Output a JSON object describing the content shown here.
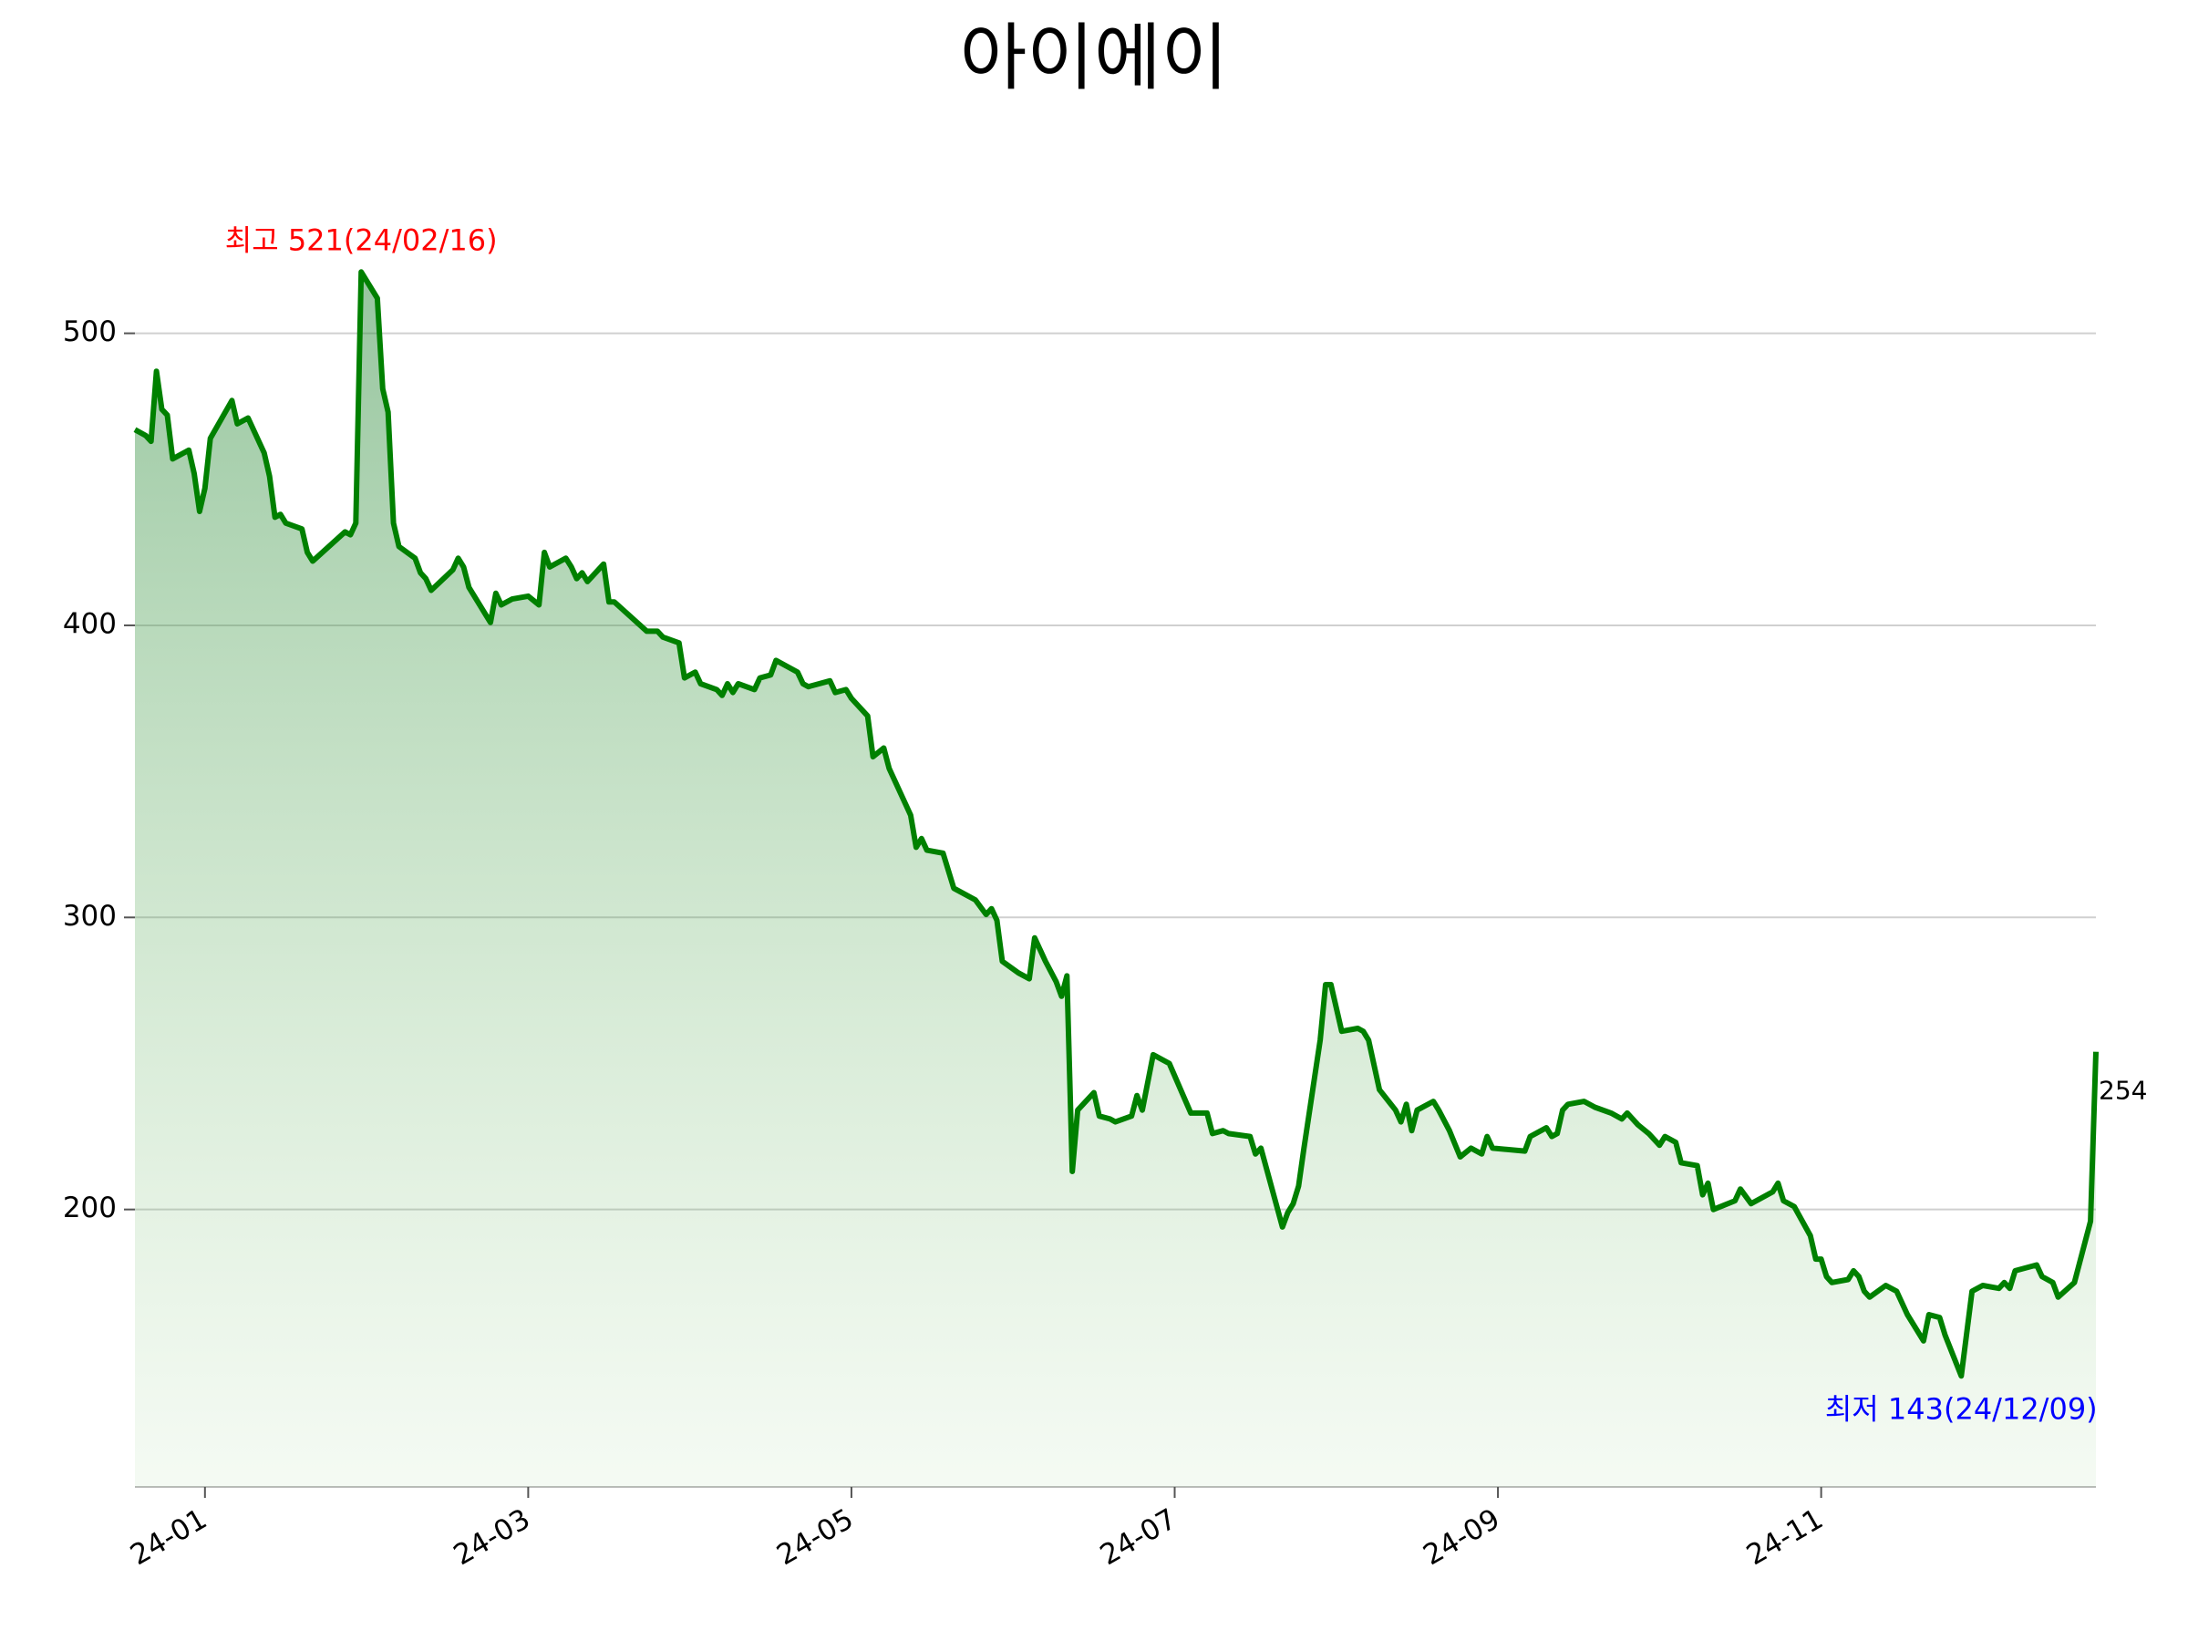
{
  "chart_data": {
    "type": "line",
    "title": "아이에이",
    "color": "green",
    "grid": true,
    "x": [
      "2024-01-05",
      "2024-01-07",
      "2024-01-08",
      "2024-01-09",
      "2024-01-10",
      "2024-01-11",
      "2024-01-12",
      "2024-01-15",
      "2024-01-16",
      "2024-01-17",
      "2024-01-18",
      "2024-01-19",
      "2024-01-23",
      "2024-01-24",
      "2024-01-26",
      "2024-01-29",
      "2024-01-30",
      "2024-01-31",
      "2024-02-01",
      "2024-02-02",
      "2024-02-05",
      "2024-02-06",
      "2024-02-07",
      "2024-02-13",
      "2024-02-14",
      "2024-02-15",
      "2024-02-16",
      "2024-02-19",
      "2024-02-20",
      "2024-02-21",
      "2024-02-22",
      "2024-02-23",
      "2024-02-26",
      "2024-02-27",
      "2024-02-28",
      "2024-02-29",
      "2024-03-04",
      "2024-03-05",
      "2024-03-06",
      "2024-03-07",
      "2024-03-11",
      "2024-03-12",
      "2024-03-13",
      "2024-03-15",
      "2024-03-18",
      "2024-03-20",
      "2024-03-21",
      "2024-03-22",
      "2024-03-25",
      "2024-03-26",
      "2024-03-27",
      "2024-03-28",
      "2024-03-29",
      "2024-04-01",
      "2024-04-02",
      "2024-04-03",
      "2024-04-09",
      "2024-04-11",
      "2024-04-12",
      "2024-04-15",
      "2024-04-16",
      "2024-04-18",
      "2024-04-19",
      "2024-04-22",
      "2024-04-23",
      "2024-04-24",
      "2024-04-25",
      "2024-04-26",
      "2024-04-29",
      "2024-04-30",
      "2024-05-02",
      "2024-05-03",
      "2024-05-07",
      "2024-05-08",
      "2024-05-09",
      "2024-05-13",
      "2024-05-14",
      "2024-05-16",
      "2024-05-17",
      "2024-05-20",
      "2024-05-21",
      "2024-05-23",
      "2024-05-24",
      "2024-05-28",
      "2024-05-29",
      "2024-05-30",
      "2024-05-31",
      "2024-06-03",
      "2024-06-05",
      "2024-06-09",
      "2024-06-11",
      "2024-06-12",
      "2024-06-13",
      "2024-06-14",
      "2024-06-17",
      "2024-06-19",
      "2024-06-20",
      "2024-06-22",
      "2024-06-24",
      "2024-06-25",
      "2024-06-26",
      "2024-06-27",
      "2024-06-28",
      "2024-07-01",
      "2024-07-02",
      "2024-07-04",
      "2024-07-05",
      "2024-07-08",
      "2024-07-09",
      "2024-07-10",
      "2024-07-12",
      "2024-07-15",
      "2024-07-19",
      "2024-07-22",
      "2024-07-23",
      "2024-07-25",
      "2024-07-26",
      "2024-07-30",
      "2024-07-31",
      "2024-08-01",
      "2024-08-05",
      "2024-08-06",
      "2024-08-07",
      "2024-08-08",
      "2024-08-09",
      "2024-08-12",
      "2024-08-13",
      "2024-08-14",
      "2024-08-16",
      "2024-08-19",
      "2024-08-20",
      "2024-08-21",
      "2024-08-23",
      "2024-08-26",
      "2024-08-27",
      "2024-08-28",
      "2024-08-29",
      "2024-08-30",
      "2024-09-02",
      "2024-09-03",
      "2024-09-05",
      "2024-09-07",
      "2024-09-09",
      "2024-09-11",
      "2024-09-12",
      "2024-09-13",
      "2024-09-19",
      "2024-09-20",
      "2024-09-23",
      "2024-09-24",
      "2024-09-25",
      "2024-09-26",
      "2024-09-27",
      "2024-09-30",
      "2024-10-02",
      "2024-10-05",
      "2024-10-07",
      "2024-10-08",
      "2024-10-10",
      "2024-10-12",
      "2024-10-14",
      "2024-10-15",
      "2024-10-17",
      "2024-10-18",
      "2024-10-21",
      "2024-10-22",
      "2024-10-23",
      "2024-10-24",
      "2024-10-28",
      "2024-10-29",
      "2024-10-31",
      "2024-11-04",
      "2024-11-05",
      "2024-11-06",
      "2024-11-08",
      "2024-11-11",
      "2024-11-12",
      "2024-11-13",
      "2024-11-14",
      "2024-11-15",
      "2024-11-18",
      "2024-11-19",
      "2024-11-20",
      "2024-11-21",
      "2024-11-22",
      "2024-11-25",
      "2024-11-27",
      "2024-11-29",
      "2024-12-02",
      "2024-12-03",
      "2024-12-05",
      "2024-12-06",
      "2024-12-09",
      "2024-12-11",
      "2024-12-13",
      "2024-12-16",
      "2024-12-17",
      "2024-12-18",
      "2024-12-19",
      "2024-12-23",
      "2024-12-24",
      "2024-12-26",
      "2024-12-27",
      "2024-12-30",
      "2025-01-02",
      "2025-01-03"
    ],
    "values": [
      467,
      465,
      463,
      487,
      474,
      472,
      457,
      460,
      452,
      439,
      447,
      464,
      477,
      469,
      471,
      459,
      451,
      437,
      438,
      435,
      433,
      425,
      422,
      432,
      431,
      435,
      521,
      512,
      481,
      473,
      435,
      427,
      423,
      418,
      416,
      412,
      419,
      423,
      420,
      413,
      401,
      411,
      407,
      409,
      410,
      407,
      425,
      420,
      423,
      420,
      416,
      418,
      415,
      421,
      408,
      408,
      398,
      398,
      396,
      394,
      382,
      384,
      380,
      378,
      376,
      380,
      377,
      380,
      378,
      382,
      383,
      388,
      384,
      380,
      379,
      381,
      377,
      378,
      375,
      369,
      355,
      358,
      351,
      335,
      324,
      327,
      323,
      322,
      310,
      306,
      301,
      303,
      299,
      285,
      281,
      279,
      293,
      285,
      278,
      273,
      280,
      213,
      234,
      240,
      232,
      231,
      230,
      232,
      239,
      234,
      253,
      250,
      233,
      233,
      226,
      227,
      226,
      225,
      219,
      221,
      194,
      199,
      202,
      208,
      221,
      258,
      277,
      277,
      261,
      262,
      261,
      258,
      241,
      234,
      230,
      236,
      227,
      234,
      237,
      234,
      227,
      218,
      221,
      219,
      225,
      221,
      220,
      225,
      228,
      225,
      226,
      234,
      236,
      237,
      235,
      233,
      231,
      233,
      229,
      226,
      222,
      225,
      223,
      216,
      215,
      205,
      209,
      200,
      203,
      207,
      202,
      206,
      209,
      203,
      201,
      191,
      183,
      183,
      177,
      175,
      176,
      179,
      177,
      172,
      170,
      174,
      172,
      164,
      155,
      164,
      163,
      157,
      143,
      172,
      174,
      173,
      175,
      173,
      179,
      181,
      177,
      175,
      170,
      175,
      196,
      254
    ],
    "xlim": [
      "2024-01-05",
      "2025-01-03"
    ],
    "xticks": [
      {
        "value": "2024-01-18",
        "label": "24-01"
      },
      {
        "value": "2024-03-18",
        "label": "24-03"
      },
      {
        "value": "2024-05-17",
        "label": "24-05"
      },
      {
        "value": "2024-07-16",
        "label": "24-07"
      },
      {
        "value": "2024-09-14",
        "label": "24-09"
      },
      {
        "value": "2024-11-13",
        "label": "24-11"
      }
    ],
    "ylim": [
      105,
      557
    ],
    "yticks": [
      200,
      300,
      400,
      500
    ],
    "annotations": [
      {
        "text": "최고 521(24/02/16)",
        "x": "2024-02-16",
        "y": 521,
        "color": "red",
        "position": "above"
      },
      {
        "text": "최저 143(24/12/09)",
        "x": "2024-12-09",
        "y": 143,
        "color": "blue",
        "position": "below"
      }
    ]
  }
}
